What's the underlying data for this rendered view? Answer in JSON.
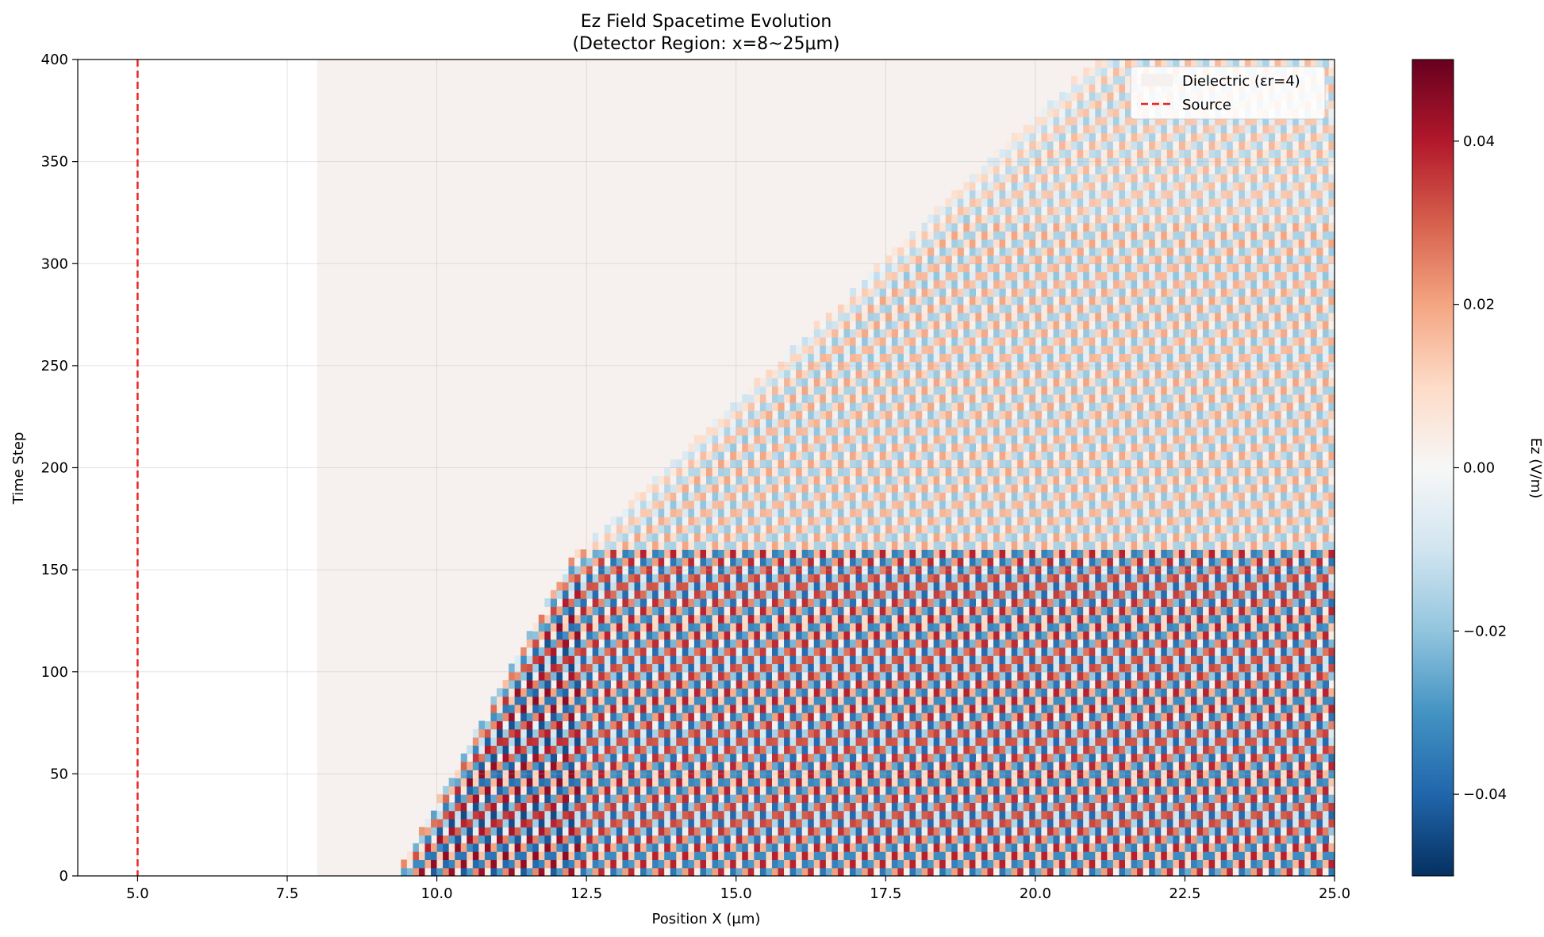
{
  "chart_data": {
    "type": "heatmap",
    "title": "Ez Field Spacetime Evolution",
    "subtitle": "(Detector Region: x=8~25μm)",
    "xlabel": "Position X (μm)",
    "ylabel": "Time Step",
    "xlim": [
      4,
      25
    ],
    "ylim": [
      0,
      400
    ],
    "xticks": [
      5.0,
      7.5,
      10.0,
      12.5,
      15.0,
      17.5,
      20.0,
      22.5,
      25.0
    ],
    "xtick_labels": [
      "5.0",
      "7.5",
      "10.0",
      "12.5",
      "15.0",
      "17.5",
      "20.0",
      "22.5",
      "25.0"
    ],
    "yticks": [
      0,
      50,
      100,
      150,
      200,
      250,
      300,
      350,
      400
    ],
    "ytick_labels": [
      "0",
      "50",
      "100",
      "150",
      "200",
      "250",
      "300",
      "350",
      "400"
    ],
    "grid": true,
    "colormap": "RdBu_r",
    "colorbar": {
      "label": "Ez (V/m)",
      "vmin": -0.05,
      "vmax": 0.05,
      "ticks": [
        -0.04,
        -0.02,
        0.0,
        0.02,
        0.04
      ],
      "tick_labels": [
        "−0.04",
        "−0.02",
        "0.00",
        "0.02",
        "0.04"
      ]
    },
    "dielectric": {
      "x_start": 8.0,
      "x_end": 25.0,
      "color": "#f6f1ee"
    },
    "source": {
      "x": 5.0,
      "color": "#e8251f",
      "style": "dashed"
    },
    "legend": {
      "position": "upper right",
      "entries": [
        {
          "label": "Dielectric (εr=4)",
          "kind": "patch"
        },
        {
          "label": "Source",
          "kind": "line"
        }
      ]
    },
    "field_model": {
      "front_start_x": 9.2,
      "front_slope_steps_per_um": 53,
      "front_knee_step": 160,
      "front_knee_x": 12.2,
      "front_slope_after_knee_steps_per_um": 28,
      "front_second_knee_step": 320,
      "strong_amplitude": 0.045,
      "weak_amplitude": 0.02,
      "strong_region_max_step": 160,
      "wavelength_um": 0.5,
      "period_steps": 9.5
    }
  }
}
